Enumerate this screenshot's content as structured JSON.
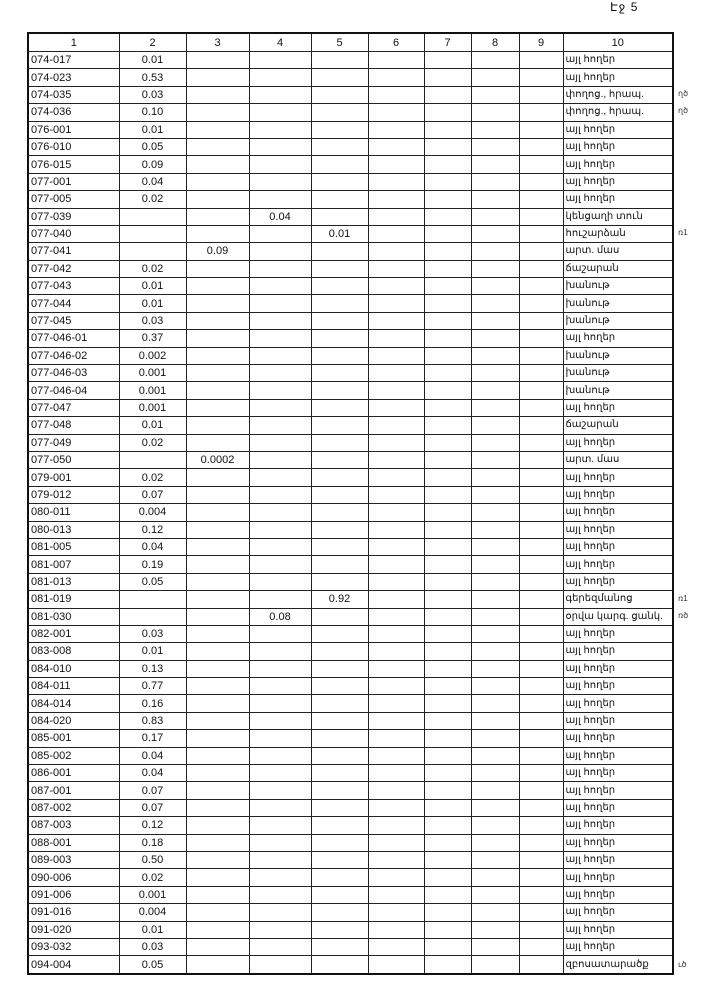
{
  "page_label": "Էջ 5",
  "columns": [
    "1",
    "2",
    "3",
    "4",
    "5",
    "6",
    "7",
    "8",
    "9",
    "10"
  ],
  "rows": [
    {
      "id": "074-017",
      "c2": "0.01",
      "c10": "այլ հողեր"
    },
    {
      "id": "074-023",
      "c2": "0.53",
      "c10": "այլ հողեր"
    },
    {
      "id": "074-035",
      "c2": "0.03",
      "c10": "փողոց., հրապ.",
      "note": "ղծ"
    },
    {
      "id": "074-036",
      "c2": "0.10",
      "c10": "փողոց., հրապ.",
      "note": "ղծ"
    },
    {
      "id": "076-001",
      "c2": "0.01",
      "c10": "այլ հողեր"
    },
    {
      "id": "076-010",
      "c2": "0.05",
      "c10": "այլ հողեր"
    },
    {
      "id": "076-015",
      "c2": "0.09",
      "c10": "այլ հողեր"
    },
    {
      "id": "077-001",
      "c2": "0.04",
      "c10": "այլ հողեր"
    },
    {
      "id": "077-005",
      "c2": "0.02",
      "c10": "այլ հողեր"
    },
    {
      "id": "077-039",
      "c4": "0.04",
      "c10": "կենցաղի տուն"
    },
    {
      "id": "077-040",
      "c5": "0.01",
      "c10": "հուշարձան",
      "note": "ռ1"
    },
    {
      "id": "077-041",
      "c3": "0.09",
      "c10": "արտ. մաս"
    },
    {
      "id": "077-042",
      "c2": "0.02",
      "c10": "ճաշարան"
    },
    {
      "id": "077-043",
      "c2": "0.01",
      "c10": "խանութ"
    },
    {
      "id": "077-044",
      "c2": "0.01",
      "c10": "խանութ"
    },
    {
      "id": "077-045",
      "c2": "0.03",
      "c10": "խանութ"
    },
    {
      "id": "077-046-01",
      "c2": "0.37",
      "c10": "այլ հողեր"
    },
    {
      "id": "077-046-02",
      "c2": "0.002",
      "c10": "խանութ"
    },
    {
      "id": "077-046-03",
      "c2": "0.001",
      "c10": "խանութ"
    },
    {
      "id": "077-046-04",
      "c2": "0.001",
      "c10": "խանութ"
    },
    {
      "id": "077-047",
      "c2": "0.001",
      "c10": "այլ հողեր"
    },
    {
      "id": "077-048",
      "c2": "0.01",
      "c10": "ճաշարան"
    },
    {
      "id": "077-049",
      "c2": "0.02",
      "c10": "այլ հողեր"
    },
    {
      "id": "077-050",
      "c3": "0.0002",
      "c10": "արտ. մաս"
    },
    {
      "id": "079-001",
      "c2": "0.02",
      "c10": "այլ հողեր"
    },
    {
      "id": "079-012",
      "c2": "0.07",
      "c10": "այլ հողեր"
    },
    {
      "id": "080-011",
      "c2": "0.004",
      "c10": "այլ հողեր"
    },
    {
      "id": "080-013",
      "c2": "0.12",
      "c10": "այլ հողեր"
    },
    {
      "id": "081-005",
      "c2": "0.04",
      "c10": "այլ հողեր"
    },
    {
      "id": "081-007",
      "c2": "0.19",
      "c10": "այլ հողեր"
    },
    {
      "id": "081-013",
      "c2": "0.05",
      "c10": "այլ հողեր"
    },
    {
      "id": "081-019",
      "c5": "0.92",
      "c10": "գերեզմանոց",
      "note": "ռ1"
    },
    {
      "id": "081-030",
      "c4": "0.08",
      "c10": "օրվա կարգ. ցանկ.",
      "note": "ռծ"
    },
    {
      "id": "082-001",
      "c2": "0.03",
      "c10": "այլ հողեր"
    },
    {
      "id": "083-008",
      "c2": "0.01",
      "c10": "այլ հողեր"
    },
    {
      "id": "084-010",
      "c2": "0.13",
      "c10": "այլ հողեր"
    },
    {
      "id": "084-011",
      "c2": "0.77",
      "c10": "այլ հողեր"
    },
    {
      "id": "084-014",
      "c2": "0.16",
      "c10": "այլ հողեր"
    },
    {
      "id": "084-020",
      "c2": "0.83",
      "c10": "այլ հողեր"
    },
    {
      "id": "085-001",
      "c2": "0.17",
      "c10": "այլ հողեր"
    },
    {
      "id": "085-002",
      "c2": "0.04",
      "c10": "այլ հողեր"
    },
    {
      "id": "086-001",
      "c2": "0.04",
      "c10": "այլ հողեր"
    },
    {
      "id": "087-001",
      "c2": "0.07",
      "c10": "այլ հողեր"
    },
    {
      "id": "087-002",
      "c2": "0.07",
      "c10": "այլ հողեր"
    },
    {
      "id": "087-003",
      "c2": "0.12",
      "c10": "այլ հողեր"
    },
    {
      "id": "088-001",
      "c2": "0.18",
      "c10": "այլ հողեր"
    },
    {
      "id": "089-003",
      "c2": "0.50",
      "c10": "այլ հողեր"
    },
    {
      "id": "090-006",
      "c2": "0.02",
      "c10": "այլ հողեր"
    },
    {
      "id": "091-006",
      "c2": "0.001",
      "c10": "այլ հողեր"
    },
    {
      "id": "091-016",
      "c2": "0.004",
      "c10": "այլ հողեր"
    },
    {
      "id": "091-020",
      "c2": "0.01",
      "c10": "այլ հողեր"
    },
    {
      "id": "093-032",
      "c2": "0.03",
      "c10": "այլ հողեր"
    },
    {
      "id": "094-004",
      "c2": "0.05",
      "c10": "զբոսատարածք",
      "note": "ւծ"
    }
  ]
}
